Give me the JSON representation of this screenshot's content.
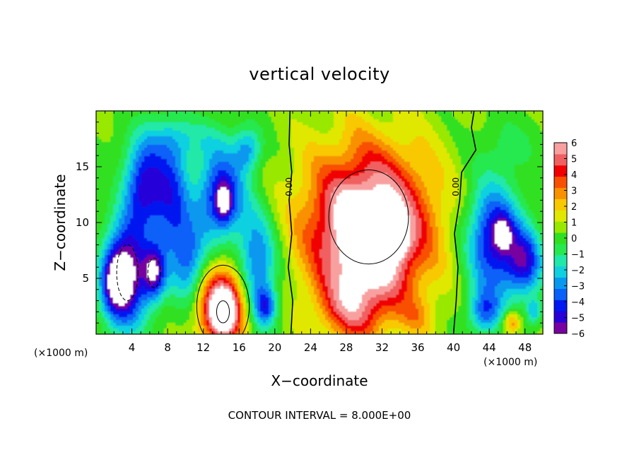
{
  "chart_data": {
    "type": "heatmap",
    "title": "vertical velocity",
    "xlabel": "X−coordinate",
    "ylabel": "Z−coordinate",
    "x_unit_label": "(×1000 m)",
    "x_unit_label_right": "(×1000 m)",
    "footer": "CONTOUR INTERVAL = 8.000E+00",
    "xlim": [
      0,
      50
    ],
    "ylim": [
      0,
      20
    ],
    "x_ticks": [
      4,
      8,
      12,
      16,
      20,
      24,
      28,
      32,
      36,
      40,
      44,
      48
    ],
    "y_ticks": [
      5,
      10,
      15
    ],
    "colorbar": {
      "min": -6,
      "max": 6,
      "tick_labels": [
        "6",
        "5",
        "4",
        "3",
        "2",
        "1",
        "0",
        "−1",
        "−2",
        "−3",
        "−4",
        "−5",
        "−6"
      ],
      "colors": [
        "#7800a0",
        "#2800d8",
        "#0018f0",
        "#0860f8",
        "#0898f0",
        "#10d0e0",
        "#20e8a8",
        "#28e850",
        "#30e020",
        "#98e800",
        "#e0e800",
        "#f8c800",
        "#f89000",
        "#f85000",
        "#f00000",
        "#f06060",
        "#f8a0a0"
      ]
    },
    "contour_labels": [
      {
        "text": "0.00",
        "x": 21.9,
        "z": 13.2
      },
      {
        "text": "0.00",
        "x": 40.6,
        "z": 13.2
      }
    ],
    "zero_contours": [
      [
        [
          21.8,
          0
        ],
        [
          22.0,
          3
        ],
        [
          21.5,
          6
        ],
        [
          21.9,
          9
        ],
        [
          21.6,
          12
        ],
        [
          21.9,
          14.5
        ],
        [
          21.6,
          17
        ],
        [
          21.7,
          20
        ]
      ],
      [
        [
          40.0,
          0
        ],
        [
          40.3,
          3
        ],
        [
          40.5,
          6
        ],
        [
          40.1,
          9
        ],
        [
          40.7,
          12
        ],
        [
          40.9,
          14.5
        ],
        [
          42.5,
          16.5
        ],
        [
          42.0,
          18.5
        ],
        [
          42.3,
          20
        ]
      ]
    ],
    "features": [
      {
        "x": 30.5,
        "z": 10.5,
        "rx": 7.2,
        "rz": 6.8,
        "w": 5.6
      },
      {
        "x": 30.5,
        "z": 7.0,
        "rx": 5.5,
        "rz": 5.8,
        "w": 3.4
      },
      {
        "x": 28.5,
        "z": 2.2,
        "rx": 3.5,
        "rz": 3.0,
        "w": 2.6
      },
      {
        "x": 34.0,
        "z": 8.5,
        "rx": 1.2,
        "rz": 1.6,
        "w": 2.0
      },
      {
        "x": 36.0,
        "z": 1.5,
        "rx": 2.0,
        "rz": 1.8,
        "w": 1.3
      },
      {
        "x": 14.2,
        "z": 2.5,
        "rx": 2.8,
        "rz": 3.5,
        "w": 6.5
      },
      {
        "x": 14.2,
        "z": 2.0,
        "rx": 1.3,
        "rz": 1.8,
        "w": 3.5
      },
      {
        "x": 3.5,
        "z": 5.5,
        "rx": 2.4,
        "rz": 5.0,
        "w": -6.5
      },
      {
        "x": 2.0,
        "z": 4.5,
        "rx": 1.6,
        "rz": 2.8,
        "w": -4.0
      },
      {
        "x": 6.5,
        "z": 5.5,
        "rx": 1.3,
        "rz": 2.4,
        "w": -5.0
      },
      {
        "x": 5.5,
        "z": 13.5,
        "rx": 2.2,
        "rz": 4.0,
        "w": -5.0
      },
      {
        "x": 8.5,
        "z": 12.0,
        "rx": 2.0,
        "rz": 5.5,
        "w": -4.0
      },
      {
        "x": 14.0,
        "z": 12.5,
        "rx": 2.6,
        "rz": 4.0,
        "w": -5.2
      },
      {
        "x": 14.3,
        "z": 11.8,
        "rx": 0.9,
        "rz": 1.6,
        "w": -3.0
      },
      {
        "x": 10.5,
        "z": 6.5,
        "rx": 2.0,
        "rz": 4.0,
        "w": -3.5
      },
      {
        "x": 18.0,
        "z": 6.0,
        "rx": 2.2,
        "rz": 5.0,
        "w": -4.2
      },
      {
        "x": 19.0,
        "z": 2.5,
        "rx": 1.2,
        "rz": 1.6,
        "w": -3.5
      },
      {
        "x": 17.0,
        "z": 16.5,
        "rx": 1.5,
        "rz": 2.0,
        "w": -2.8
      },
      {
        "x": 44.5,
        "z": 8.5,
        "rx": 3.0,
        "rz": 5.0,
        "w": -5.5
      },
      {
        "x": 48.0,
        "z": 6.5,
        "rx": 2.0,
        "rz": 3.0,
        "w": -4.5
      },
      {
        "x": 45.5,
        "z": 9.0,
        "rx": 1.0,
        "rz": 1.4,
        "w": -3.0
      },
      {
        "x": 43.5,
        "z": 2.0,
        "rx": 1.8,
        "rz": 2.0,
        "w": -3.5
      },
      {
        "x": 46.5,
        "z": 1.0,
        "rx": 1.0,
        "rz": 1.0,
        "w": 3.0
      },
      {
        "x": 49.0,
        "z": 2.0,
        "rx": 0.8,
        "rz": 1.2,
        "w": -2.5
      },
      {
        "x": 10.0,
        "z": 17.5,
        "rx": 5.0,
        "rz": 2.0,
        "w": -1.5
      },
      {
        "x": 46.0,
        "z": 17.0,
        "rx": 4.0,
        "rz": 2.5,
        "w": -0.8
      }
    ]
  }
}
